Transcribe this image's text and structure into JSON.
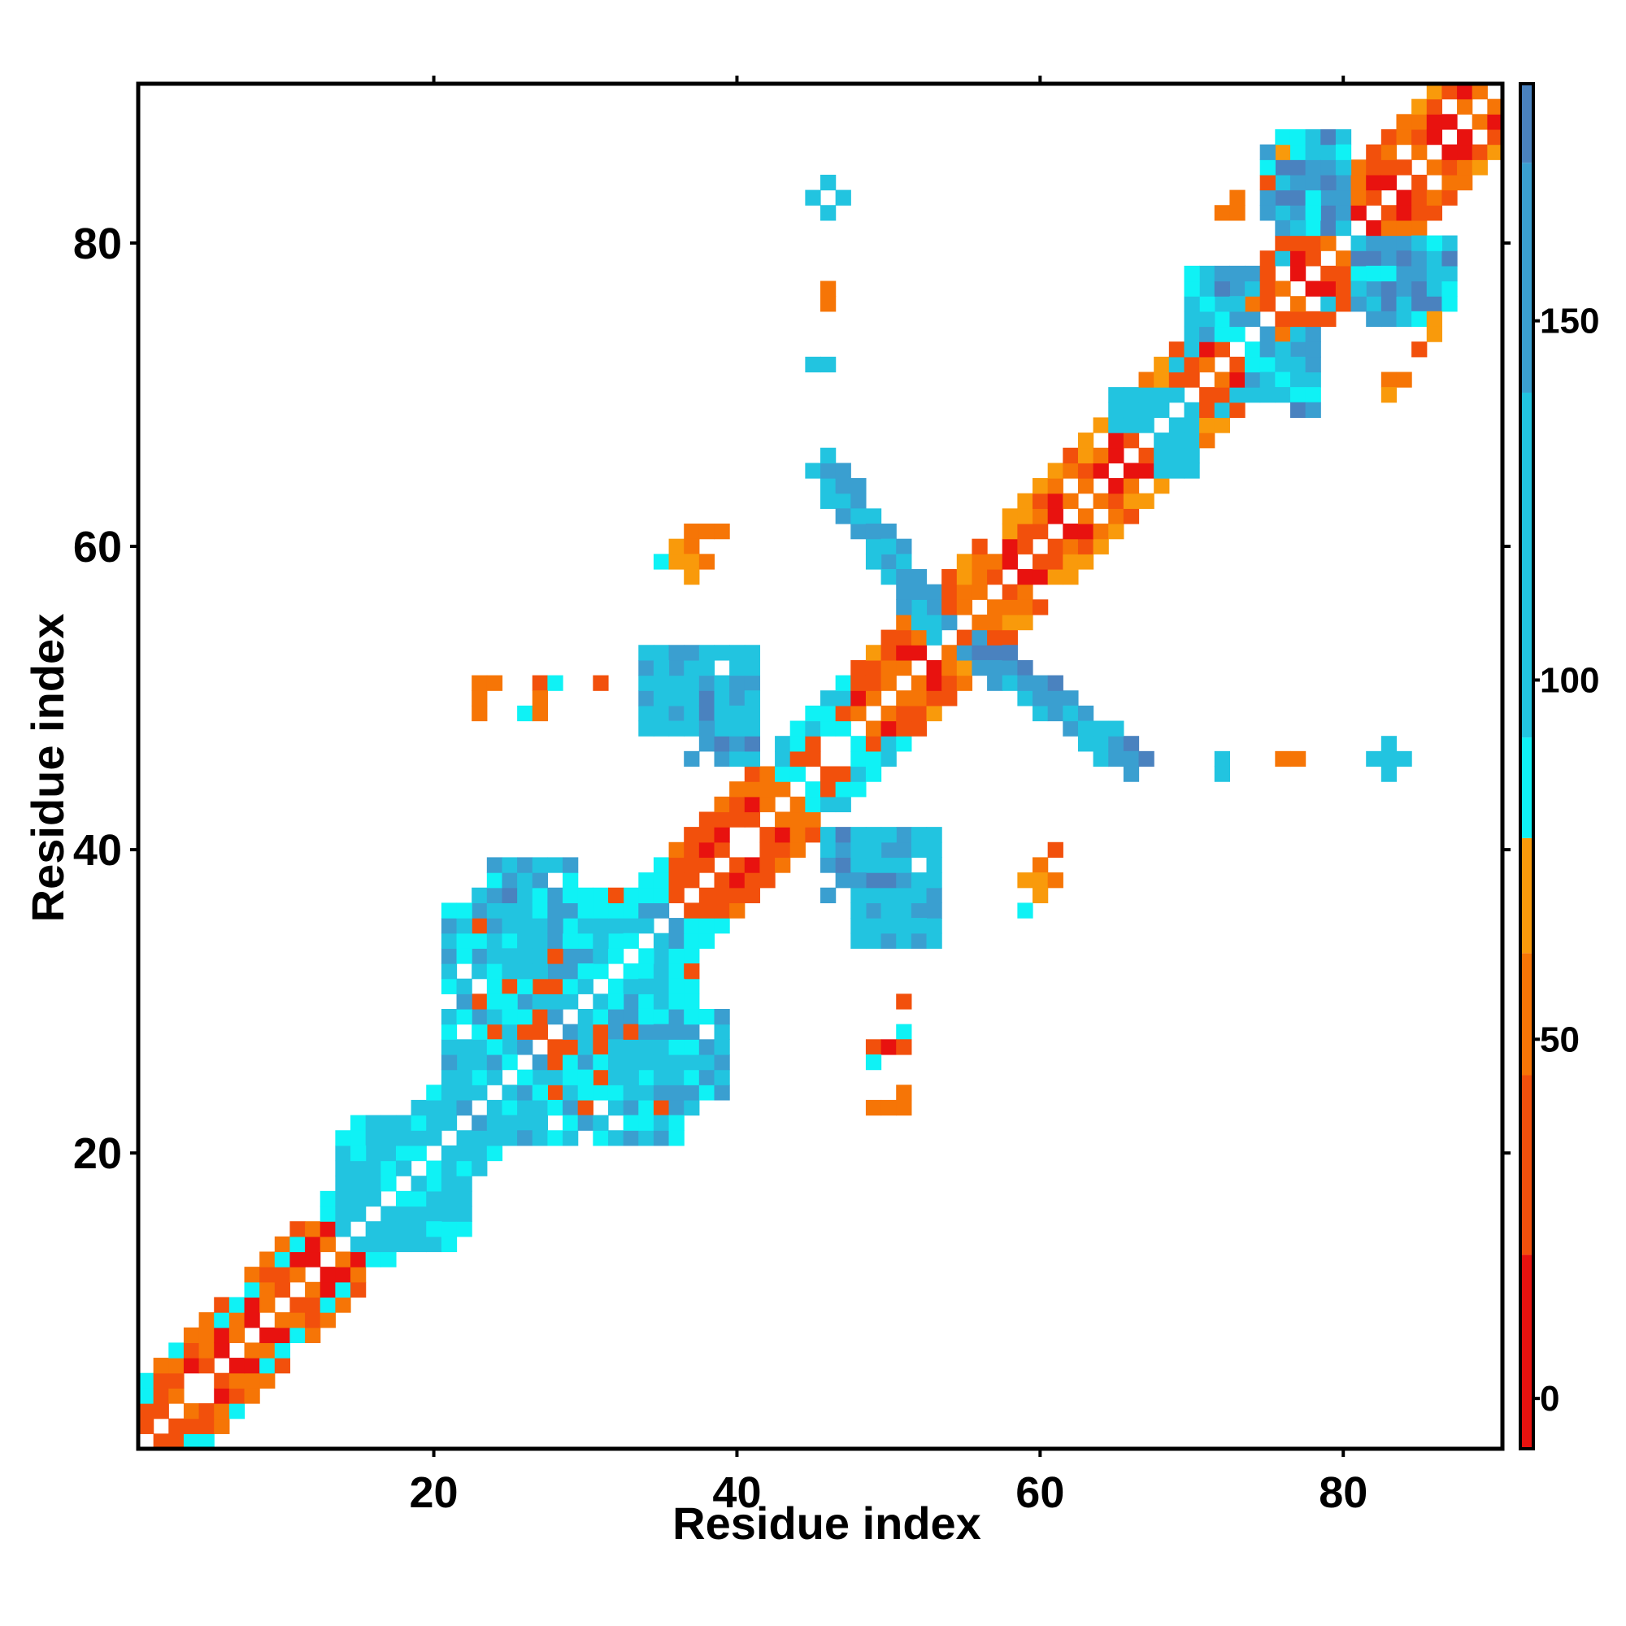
{
  "chart_data": {
    "type": "heatmap",
    "title": "",
    "xlabel": "Residue index",
    "ylabel": "Residue index",
    "xlim": [
      0.5,
      90.5
    ],
    "ylim": [
      0.5,
      90.5
    ],
    "xticks": [
      {
        "value": 20,
        "label": "20"
      },
      {
        "value": 40,
        "label": "40"
      },
      {
        "value": 60,
        "label": "60"
      },
      {
        "value": 80,
        "label": "80"
      }
    ],
    "yticks": [
      {
        "value": 20,
        "label": "20"
      },
      {
        "value": 40,
        "label": "40"
      },
      {
        "value": 60,
        "label": "60"
      },
      {
        "value": 80,
        "label": "80"
      }
    ],
    "grid": false,
    "legend": "colorbar-right",
    "colorbar": {
      "range": [
        -7,
        183
      ],
      "ticks": [
        {
          "value": 0,
          "label": "0"
        },
        {
          "value": 50,
          "label": "50"
        },
        {
          "value": 100,
          "label": "100"
        },
        {
          "value": 150,
          "label": "150"
        }
      ],
      "segments": [
        {
          "from": -7,
          "to": 20,
          "color": "#e8120f"
        },
        {
          "from": 20,
          "to": 45,
          "color": "#f2500c"
        },
        {
          "from": 45,
          "to": 62,
          "color": "#f67506"
        },
        {
          "from": 62,
          "to": 78,
          "color": "#f99a0b"
        },
        {
          "from": 78,
          "to": 92,
          "color": "#0ff2f5"
        },
        {
          "from": 92,
          "to": 140,
          "color": "#22c4e0"
        },
        {
          "from": 140,
          "to": 172,
          "color": "#3a9fd0"
        },
        {
          "from": 172,
          "to": 183,
          "color": "#4a82bf"
        },
        {
          "from": 183,
          "to": 190,
          "color": "#ffffff"
        }
      ]
    },
    "value_colors": {
      "5": "#e8120f",
      "32": "#f2500c",
      "55": "#f67506",
      "70": "#f99a0b",
      "88": "#0ff2f5",
      "110": "#22c4e0",
      "150": "#3a9fd0",
      "175": "#4a82bf"
    },
    "diagonal_segments": [
      {
        "start": 1,
        "end": 16,
        "near": [
          5,
          32,
          55
        ],
        "far": [
          32,
          55,
          88
        ]
      },
      {
        "start": 16,
        "end": 22,
        "near": [
          32,
          55,
          88
        ],
        "far": [
          110,
          88,
          55
        ]
      },
      {
        "start": 22,
        "end": 36,
        "near": [
          5,
          32,
          110
        ],
        "far": [
          110,
          88,
          150
        ]
      },
      {
        "start": 36,
        "end": 43,
        "near": [
          5,
          32,
          55
        ],
        "far": [
          55,
          32
        ]
      },
      {
        "start": 43,
        "end": 48,
        "near": [
          55,
          32,
          88
        ],
        "far": [
          110,
          88
        ]
      },
      {
        "start": 48,
        "end": 69,
        "near": [
          5,
          32,
          55
        ],
        "far": [
          55,
          32,
          70
        ]
      },
      {
        "start": 69,
        "end": 77,
        "near": [
          5,
          32,
          55
        ],
        "far": [
          32,
          110,
          70
        ]
      },
      {
        "start": 77,
        "end": 90,
        "near": [
          5,
          32,
          55
        ],
        "far": [
          55,
          32,
          70
        ]
      }
    ],
    "blocks": [
      {
        "x0": 15,
        "x1": 22,
        "y0": 14,
        "y1": 21,
        "values": [
          110,
          88,
          110
        ]
      },
      {
        "x0": 23,
        "x1": 36,
        "y0": 21,
        "y1": 37,
        "values": [
          110,
          88,
          150,
          110,
          88,
          32
        ]
      },
      {
        "x0": 34,
        "x1": 39,
        "y0": 24,
        "y1": 29,
        "values": [
          110,
          150,
          88
        ]
      },
      {
        "x0": 34,
        "x1": 38,
        "y0": 49,
        "y1": 53,
        "values": [
          110,
          88,
          110
        ]
      },
      {
        "x0": 37,
        "x1": 41,
        "y0": 46,
        "y1": 51,
        "values": [
          150,
          175,
          110
        ]
      },
      {
        "x0": 48,
        "x1": 53,
        "y0": 34,
        "y1": 41,
        "values": [
          110,
          150,
          110
        ]
      },
      {
        "x0": 76,
        "x1": 80,
        "y0": 82,
        "y1": 87,
        "values": [
          110,
          150,
          175,
          88
        ]
      },
      {
        "x0": 81,
        "x1": 86,
        "y0": 75,
        "y1": 80,
        "values": [
          110,
          150,
          175,
          88
        ]
      },
      {
        "x0": 71,
        "x1": 74,
        "y0": 74,
        "y1": 78,
        "values": [
          110,
          150,
          88
        ]
      },
      {
        "x0": 74,
        "x1": 78,
        "y0": 70,
        "y1": 73,
        "values": [
          110,
          150,
          88
        ]
      },
      {
        "x0": 66,
        "x1": 69,
        "y0": 68,
        "y1": 70,
        "values": [
          110
        ]
      },
      {
        "x0": 68,
        "x1": 70,
        "y0": 65,
        "y1": 67,
        "values": [
          110
        ]
      }
    ],
    "bands": [
      {
        "from": [
          46,
          65
        ],
        "to": [
          53,
          55
        ],
        "width": 3,
        "values": [
          110,
          150,
          110,
          150
        ]
      },
      {
        "from": [
          56,
          53
        ],
        "to": [
          66,
          46
        ],
        "width": 3,
        "values": [
          150,
          110,
          150,
          175
        ]
      }
    ],
    "cells": [
      [
        46,
        84,
        110
      ],
      [
        45,
        83,
        110
      ],
      [
        47,
        83,
        110
      ],
      [
        46,
        82,
        110
      ],
      [
        46,
        77,
        55
      ],
      [
        46,
        76,
        55
      ],
      [
        45,
        72,
        110
      ],
      [
        46,
        72,
        110
      ],
      [
        37,
        61,
        55
      ],
      [
        38,
        61,
        55
      ],
      [
        39,
        61,
        55
      ],
      [
        36,
        60,
        70
      ],
      [
        37,
        60,
        55
      ],
      [
        35,
        59,
        88
      ],
      [
        36,
        59,
        70
      ],
      [
        37,
        59,
        70
      ],
      [
        38,
        59,
        55
      ],
      [
        37,
        58,
        70
      ],
      [
        23,
        51,
        55
      ],
      [
        24,
        51,
        55
      ],
      [
        27,
        51,
        32
      ],
      [
        28,
        51,
        88
      ],
      [
        31,
        51,
        32
      ],
      [
        23,
        50,
        55
      ],
      [
        27,
        50,
        55
      ],
      [
        23,
        49,
        55
      ],
      [
        26,
        49,
        88
      ],
      [
        27,
        49,
        55
      ],
      [
        72,
        46,
        110
      ],
      [
        72,
        45,
        110
      ],
      [
        76,
        46,
        55
      ],
      [
        77,
        46,
        55
      ],
      [
        83,
        47,
        110
      ],
      [
        82,
        46,
        110
      ],
      [
        83,
        46,
        110
      ],
      [
        84,
        46,
        110
      ],
      [
        83,
        45,
        110
      ],
      [
        61,
        40,
        32
      ],
      [
        60,
        39,
        55
      ],
      [
        59,
        38,
        70
      ],
      [
        60,
        38,
        70
      ],
      [
        61,
        38,
        55
      ],
      [
        60,
        37,
        70
      ],
      [
        59,
        36,
        88
      ],
      [
        51,
        30,
        32
      ],
      [
        51,
        28,
        88
      ],
      [
        49,
        27,
        32
      ],
      [
        50,
        27,
        5
      ],
      [
        51,
        27,
        32
      ],
      [
        49,
        26,
        88
      ],
      [
        51,
        24,
        55
      ],
      [
        49,
        23,
        55
      ],
      [
        50,
        23,
        55
      ],
      [
        51,
        23,
        55
      ],
      [
        25,
        37,
        175
      ],
      [
        24,
        36,
        110
      ],
      [
        25,
        36,
        110
      ],
      [
        26,
        36,
        110
      ],
      [
        25,
        35,
        110
      ],
      [
        72,
        82,
        55
      ],
      [
        73,
        82,
        55
      ],
      [
        73,
        83,
        55
      ],
      [
        75,
        84,
        32
      ],
      [
        76,
        86,
        70
      ],
      [
        77,
        86,
        88
      ],
      [
        83,
        71,
        55
      ],
      [
        84,
        71,
        55
      ],
      [
        83,
        70,
        70
      ],
      [
        85,
        73,
        32
      ],
      [
        86,
        75,
        70
      ],
      [
        86,
        74,
        70
      ],
      [
        72,
        77,
        175
      ],
      [
        77,
        69,
        175
      ],
      [
        78,
        69,
        150
      ]
    ]
  }
}
